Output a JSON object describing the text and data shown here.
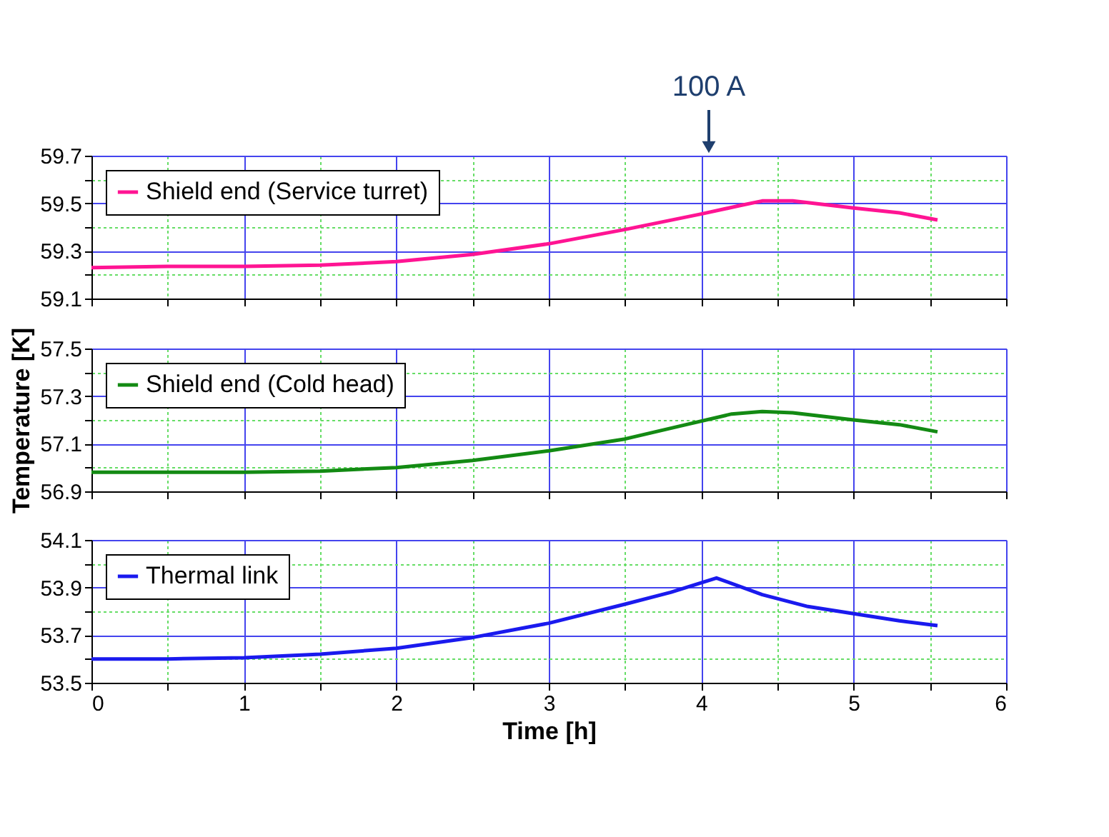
{
  "chart_data": [
    {
      "type": "line",
      "xlim": [
        0,
        6
      ],
      "xticks": [
        0,
        {
          "value": 0.5,
          "label": null
        },
        1,
        {
          "value": 1.5,
          "label": null
        },
        2,
        {
          "value": 2.5,
          "label": null
        },
        3,
        {
          "value": 3.5,
          "label": null
        },
        4,
        {
          "value": 4.5,
          "label": null
        },
        5,
        {
          "value": 5.5,
          "label": null
        },
        6
      ],
      "ylim": [
        59.1,
        59.7
      ],
      "yticks": [
        59.1,
        {
          "value": 59.2,
          "label": null
        },
        59.3,
        {
          "value": 59.4,
          "label": null
        },
        59.5,
        {
          "value": 59.6,
          "label": null
        },
        59.7
      ],
      "grid": true,
      "tick_labels": "y",
      "line_style": "solid",
      "legend": "top left",
      "annotations": [
        "100 A"
      ],
      "series": [
        {
          "name": "Shield end (Service turret)",
          "color": "#ff1493",
          "x": [
            0,
            0.5,
            1,
            1.5,
            2,
            2.5,
            3,
            3.5,
            4,
            4.25,
            4.4,
            4.6,
            5,
            5.3,
            5.55
          ],
          "values": [
            59.23,
            59.235,
            59.235,
            59.24,
            59.255,
            59.285,
            59.33,
            59.39,
            59.455,
            59.49,
            59.51,
            59.51,
            59.48,
            59.46,
            59.43
          ]
        }
      ]
    },
    {
      "type": "line",
      "xlim": [
        0,
        6
      ],
      "xticks": [
        0,
        {
          "value": 0.5,
          "label": null
        },
        1,
        {
          "value": 1.5,
          "label": null
        },
        2,
        {
          "value": 2.5,
          "label": null
        },
        3,
        {
          "value": 3.5,
          "label": null
        },
        4,
        {
          "value": 4.5,
          "label": null
        },
        5,
        {
          "value": 5.5,
          "label": null
        },
        6
      ],
      "ylim": [
        56.9,
        57.5
      ],
      "yticks": [
        56.9,
        {
          "value": 57.0,
          "label": null
        },
        57.1,
        {
          "value": 57.2,
          "label": null
        },
        57.3,
        {
          "value": 57.4,
          "label": null
        },
        57.5
      ],
      "grid": true,
      "tick_labels": "y",
      "line_style": "solid",
      "legend": "top left",
      "ylabel": "Temperature [K]",
      "series": [
        {
          "name": "Shield end (Cold head)",
          "color": "#138a13",
          "x": [
            0,
            0.5,
            1,
            1.5,
            2,
            2.5,
            3,
            3.5,
            3.9,
            4.2,
            4.4,
            4.6,
            5,
            5.3,
            5.55
          ],
          "values": [
            56.98,
            56.98,
            56.98,
            56.985,
            57.0,
            57.03,
            57.07,
            57.12,
            57.18,
            57.225,
            57.235,
            57.23,
            57.2,
            57.18,
            57.15
          ]
        }
      ]
    },
    {
      "type": "line",
      "xlim": [
        0,
        6
      ],
      "xticks": [
        0,
        {
          "value": 0.5,
          "label": null
        },
        1,
        {
          "value": 1.5,
          "label": null
        },
        2,
        {
          "value": 2.5,
          "label": null
        },
        3,
        {
          "value": 3.5,
          "label": null
        },
        4,
        {
          "value": 4.5,
          "label": null
        },
        5,
        {
          "value": 5.5,
          "label": null
        },
        6
      ],
      "ylim": [
        53.5,
        54.1
      ],
      "yticks": [
        53.5,
        {
          "value": 53.6,
          "label": null
        },
        53.7,
        {
          "value": 53.8,
          "label": null
        },
        53.9,
        {
          "value": 54.0,
          "label": null
        },
        54.1
      ],
      "grid": true,
      "line_style": "solid",
      "legend": "top left",
      "xlabel": "Time [h]",
      "series": [
        {
          "name": "Thermal link",
          "color": "#1a1aee",
          "x": [
            0,
            0.5,
            1,
            1.5,
            2,
            2.5,
            3,
            3.5,
            3.8,
            4.1,
            4.4,
            4.7,
            5,
            5.3,
            5.55
          ],
          "values": [
            53.6,
            53.6,
            53.605,
            53.62,
            53.645,
            53.69,
            53.75,
            53.83,
            53.88,
            53.94,
            53.87,
            53.82,
            53.79,
            53.76,
            53.74
          ]
        }
      ]
    }
  ]
}
